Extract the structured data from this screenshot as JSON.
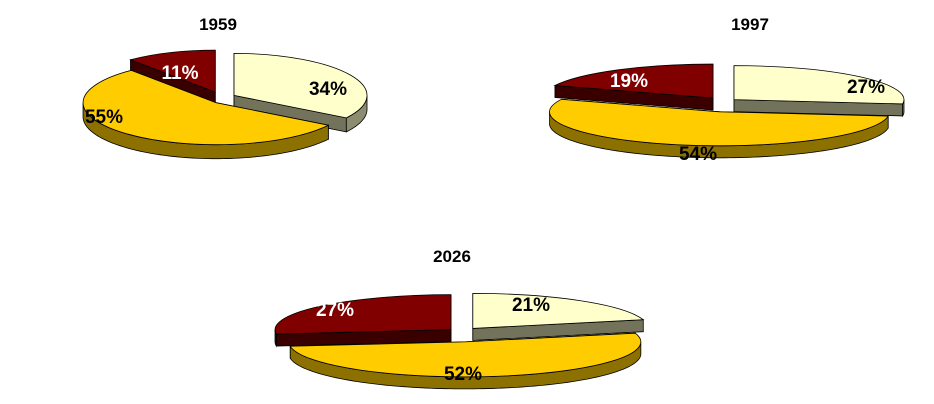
{
  "chart_data": [
    {
      "type": "pie",
      "title": "1959",
      "slices": [
        {
          "value": 34,
          "label": "34%",
          "color": "#FFFFCC"
        },
        {
          "value": 55,
          "label": "55%",
          "color": "#FFCC00"
        },
        {
          "value": 11,
          "label": "11%",
          "color": "#800000"
        }
      ]
    },
    {
      "type": "pie",
      "title": "1997",
      "slices": [
        {
          "value": 27,
          "label": "27%",
          "color": "#FFFFCC"
        },
        {
          "value": 54,
          "label": "54%",
          "color": "#FFCC00"
        },
        {
          "value": 19,
          "label": "19%",
          "color": "#800000"
        }
      ]
    },
    {
      "type": "pie",
      "title": "2026",
      "slices": [
        {
          "value": 21,
          "label": "21%",
          "color": "#FFFFCC"
        },
        {
          "value": 52,
          "label": "52%",
          "color": "#FFCC00"
        },
        {
          "value": 27,
          "label": "27%",
          "color": "#800000"
        }
      ]
    }
  ],
  "colors": {
    "cream": "#FFFFCC",
    "gold": "#FFCC00",
    "maroon": "#800000",
    "label_dark": "#000000",
    "label_light": "#FFFFFF"
  }
}
